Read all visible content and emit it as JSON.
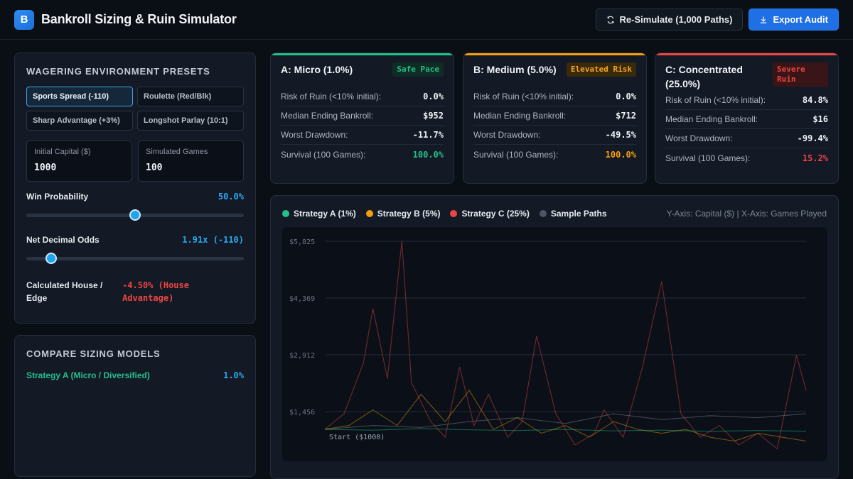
{
  "header": {
    "logo_letter": "B",
    "title": "Bankroll Sizing & Ruin Simulator",
    "resimulate_label": "Re-Simulate (1,000 Paths)",
    "export_label": "Export Audit"
  },
  "environment": {
    "title": "Wagering Environment Presets",
    "presets": [
      {
        "label": "Sports Spread (-110)",
        "active": true
      },
      {
        "label": "Roulette (Red/Blk)",
        "active": false
      },
      {
        "label": "Sharp Advantage (+3%)",
        "active": false
      },
      {
        "label": "Longshot Parlay (10:1)",
        "active": false
      }
    ],
    "initial_capital": {
      "label": "Initial Capital ($)",
      "value": "1000"
    },
    "simulated_games": {
      "label": "Simulated Games",
      "value": "100"
    },
    "win_probability": {
      "label": "Win Probability",
      "value": "50.0%",
      "fraction": 0.5
    },
    "net_odds": {
      "label": "Net Decimal Odds",
      "value": "1.91x (-110)",
      "fraction": 0.115
    },
    "house_edge": {
      "label": "Calculated House / Edge",
      "value": "-4.50% (House Advantage)"
    }
  },
  "compare": {
    "title": "Compare Sizing Models",
    "rows": [
      {
        "label": "Strategy A (Micro / Diversified)",
        "value": "1.0%"
      }
    ]
  },
  "cards": [
    {
      "title": "A: Micro (1.0%)",
      "badge": "Safe Pace",
      "accent": "#22c08a",
      "badge_fg": "#22c08a",
      "badge_bg": "#0f2d25",
      "metrics": [
        {
          "label": "Risk of Ruin (<10% initial):",
          "value": "0.0%",
          "color": "#f0f2f6"
        },
        {
          "label": "Median Ending Bankroll:",
          "value": "$952",
          "color": "#f0f2f6"
        },
        {
          "label": "Worst Drawdown:",
          "value": "-11.7%",
          "color": "#f0f2f6"
        },
        {
          "label": "Survival (100 Games):",
          "value": "100.0%",
          "color": "#22c08a"
        }
      ]
    },
    {
      "title": "B: Medium (5.0%)",
      "badge": "Elevated Risk",
      "accent": "#f59e0b",
      "badge_fg": "#f5a524",
      "badge_bg": "#3a2a0c",
      "metrics": [
        {
          "label": "Risk of Ruin (<10% initial):",
          "value": "0.0%",
          "color": "#f0f2f6"
        },
        {
          "label": "Median Ending Bankroll:",
          "value": "$712",
          "color": "#f0f2f6"
        },
        {
          "label": "Worst Drawdown:",
          "value": "-49.5%",
          "color": "#f0f2f6"
        },
        {
          "label": "Survival (100 Games):",
          "value": "100.0%",
          "color": "#f59e0b"
        }
      ]
    },
    {
      "title": "C: Concentrated (25.0%)",
      "badge": "Severe Ruin",
      "accent": "#ef4444",
      "badge_fg": "#ef4444",
      "badge_bg": "#3a1518",
      "metrics": [
        {
          "label": "Risk of Ruin (<10% initial):",
          "value": "84.8%",
          "color": "#f0f2f6"
        },
        {
          "label": "Median Ending Bankroll:",
          "value": "$16",
          "color": "#f0f2f6"
        },
        {
          "label": "Worst Drawdown:",
          "value": "-99.4%",
          "color": "#f0f2f6"
        },
        {
          "label": "Survival (100 Games):",
          "value": "15.2%",
          "color": "#ef4444"
        }
      ]
    }
  ],
  "chart": {
    "legend": [
      {
        "name": "Strategy A (1%)",
        "color": "#22c08a"
      },
      {
        "name": "Strategy B (5%)",
        "color": "#f59e0b"
      },
      {
        "name": "Strategy C (25%)",
        "color": "#ef4444"
      },
      {
        "name": "Sample Paths",
        "color": "#4b5563"
      }
    ],
    "axis_note": "Y-Axis: Capital ($) | X-Axis: Games Played",
    "start_label": "Start ($1000)"
  },
  "chart_data": {
    "type": "line",
    "y_ticks": [
      "$5,825",
      "$4,369",
      "$2,912",
      "$1,456"
    ],
    "ylim": [
      0,
      5825
    ],
    "xlim": [
      0,
      100
    ],
    "series": [
      {
        "name": "Strategy C (25%)",
        "color": "#ef4444",
        "x": [
          0,
          4,
          8,
          10,
          13,
          16,
          18,
          22,
          25,
          28,
          31,
          34,
          38,
          41,
          44,
          48,
          52,
          56,
          58,
          62,
          66,
          70,
          74,
          78,
          82,
          86,
          90,
          94,
          98,
          100
        ],
        "values": [
          1000,
          1400,
          2700,
          4100,
          2300,
          5825,
          2200,
          1200,
          800,
          2600,
          1100,
          1900,
          800,
          1200,
          3400,
          1400,
          600,
          900,
          1500,
          800,
          2600,
          4800,
          1400,
          800,
          1100,
          600,
          900,
          500,
          2900,
          2000
        ]
      },
      {
        "name": "Strategy B (5%)",
        "color": "#f59e0b",
        "x": [
          0,
          5,
          10,
          15,
          20,
          25,
          30,
          35,
          40,
          45,
          50,
          55,
          60,
          65,
          70,
          75,
          80,
          85,
          90,
          95,
          100
        ],
        "values": [
          1000,
          1100,
          1500,
          1100,
          1900,
          1200,
          2000,
          1000,
          1300,
          900,
          1100,
          800,
          1200,
          1000,
          900,
          1000,
          800,
          700,
          900,
          800,
          700
        ]
      },
      {
        "name": "Strategy A (1%)",
        "color": "#22c08a",
        "x": [
          0,
          10,
          20,
          30,
          40,
          50,
          60,
          70,
          80,
          90,
          100
        ],
        "values": [
          1000,
          980,
          1020,
          990,
          970,
          1000,
          960,
          980,
          950,
          970,
          952
        ]
      },
      {
        "name": "Sample Paths",
        "color": "#4b5563",
        "x": [
          0,
          10,
          20,
          30,
          40,
          50,
          60,
          70,
          80,
          90,
          100
        ],
        "values": [
          1000,
          1100,
          1050,
          1200,
          1300,
          1150,
          1400,
          1250,
          1350,
          1300,
          1400
        ]
      }
    ]
  }
}
